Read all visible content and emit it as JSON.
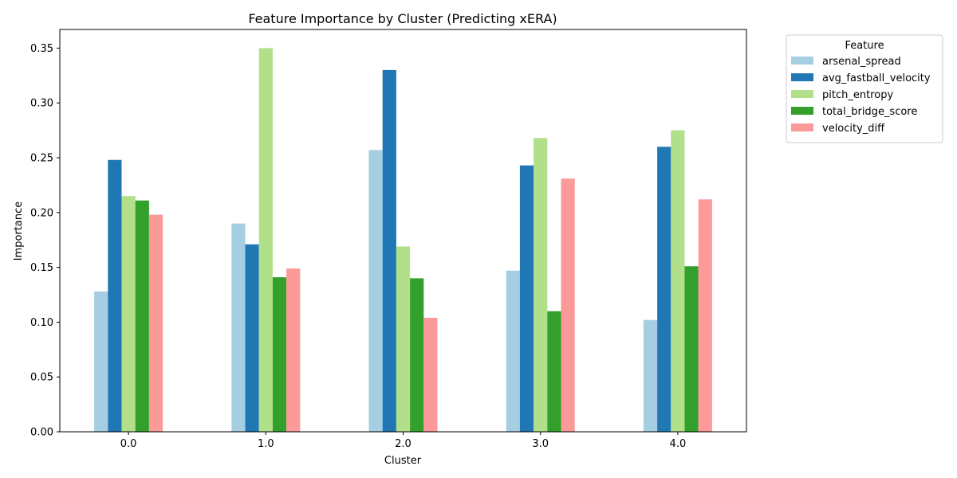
{
  "chart_data": {
    "type": "bar",
    "title": "Feature Importance by Cluster (Predicting xERA)",
    "xlabel": "Cluster",
    "ylabel": "Importance",
    "categories": [
      "0.0",
      "1.0",
      "2.0",
      "3.0",
      "4.0"
    ],
    "ylim": [
      0,
      0.367
    ],
    "yticks": [
      "0.00",
      "0.05",
      "0.10",
      "0.15",
      "0.20",
      "0.25",
      "0.30",
      "0.35"
    ],
    "grid": false,
    "legend_title": "Feature",
    "legend_position": "outside-top-right",
    "series": [
      {
        "name": "arsenal_spread",
        "color": "#a6cee3",
        "values": [
          0.128,
          0.19,
          0.257,
          0.147,
          0.102
        ]
      },
      {
        "name": "avg_fastball_velocity",
        "color": "#1f78b4",
        "values": [
          0.248,
          0.171,
          0.33,
          0.243,
          0.26
        ]
      },
      {
        "name": "pitch_entropy",
        "color": "#b2df8a",
        "values": [
          0.215,
          0.35,
          0.169,
          0.268,
          0.275
        ]
      },
      {
        "name": "total_bridge_score",
        "color": "#33a02c",
        "values": [
          0.211,
          0.141,
          0.14,
          0.11,
          0.151
        ]
      },
      {
        "name": "velocity_diff",
        "color": "#fb9a99",
        "values": [
          0.198,
          0.149,
          0.104,
          0.231,
          0.212
        ]
      }
    ]
  }
}
